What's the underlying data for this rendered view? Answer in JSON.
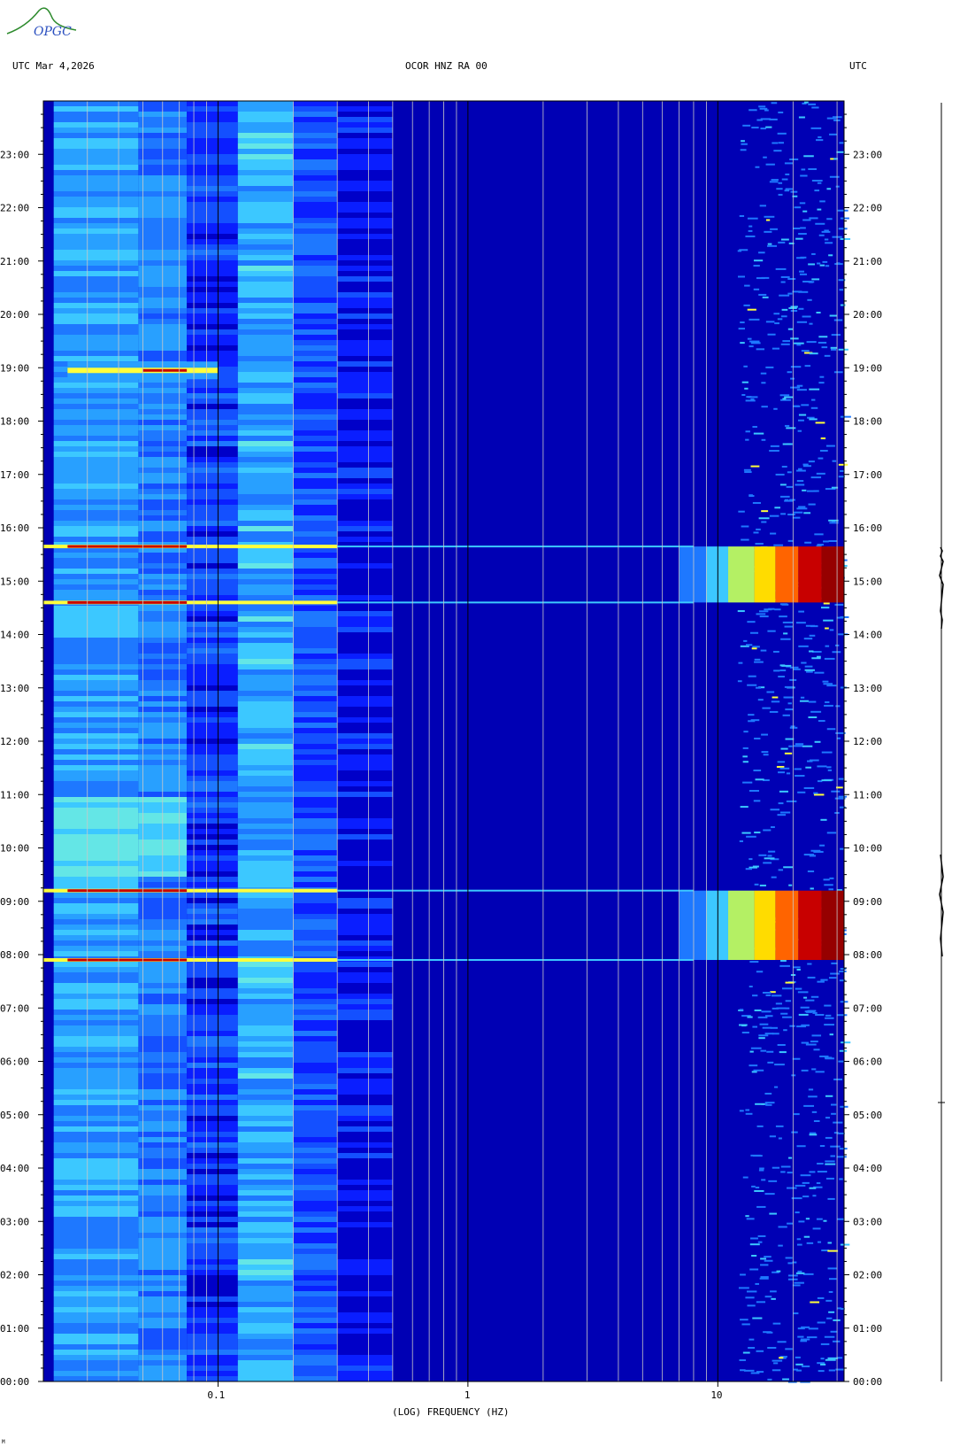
{
  "header": {
    "left": "UTC  Mar 4,2026",
    "center": "OCOR HNZ RA 00",
    "right": "UTC"
  },
  "logo": {
    "text": "OPGC"
  },
  "colors": {
    "background": "#0000b4",
    "band_low": "#1a5cff",
    "band_mid": "#3fb8ff",
    "hot": "#b00000",
    "yellow": "#ffff40",
    "grid": "#c8c8c8"
  },
  "chart_data": {
    "type": "heatmap",
    "title": "OCOR HNZ RA 00",
    "xlabel": "(LOG) FREQUENCY (HZ)",
    "ylabel": "",
    "x_scale": "log",
    "xlim": [
      0.02,
      32
    ],
    "ylim_hours": [
      0,
      24
    ],
    "x_ticks": [
      {
        "value": 0.1,
        "label": "0.1"
      },
      {
        "value": 1,
        "label": "1"
      },
      {
        "value": 10,
        "label": "10"
      }
    ],
    "y_ticks": [
      "00:00",
      "01:00",
      "02:00",
      "03:00",
      "04:00",
      "05:00",
      "06:00",
      "07:00",
      "08:00",
      "09:00",
      "10:00",
      "11:00",
      "12:00",
      "13:00",
      "14:00",
      "15:00",
      "16:00",
      "17:00",
      "18:00",
      "19:00",
      "20:00",
      "21:00",
      "22:00",
      "23:00"
    ],
    "events": [
      {
        "time_hours": 7.9,
        "note": "broadband line"
      },
      {
        "time_hours": 9.2,
        "note": "broadband line"
      },
      {
        "time_hours": 14.6,
        "note": "broadband line"
      },
      {
        "time_hours": 15.65,
        "note": "broadband line"
      },
      {
        "time_hours": 18.95,
        "note": "low-frequency burst"
      }
    ],
    "high_freq_blocks": [
      {
        "start_hours": 7.9,
        "end_hours": 9.2
      },
      {
        "start_hours": 14.6,
        "end_hours": 15.65
      }
    ]
  },
  "footer": {
    "mark": "M"
  }
}
